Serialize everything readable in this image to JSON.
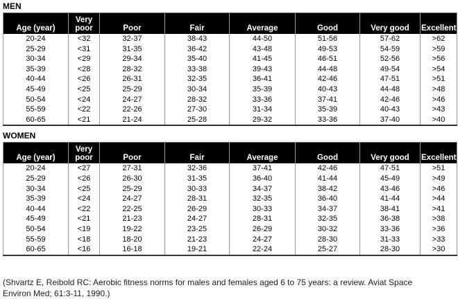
{
  "colors": {
    "header_bg": "#000000",
    "header_text": "#ffffff",
    "grid_line": "#9a9a9a"
  },
  "tables": [
    {
      "label": "MEN",
      "columns": [
        "Age (year)",
        "Very poor",
        "Poor",
        "Fair",
        "Average",
        "Good",
        "Very good",
        "Excellent"
      ],
      "rows": [
        [
          "20-24",
          "<32",
          "32-37",
          "38-43",
          "44-50",
          "51-56",
          "57-62",
          ">62"
        ],
        [
          "25-29",
          "<31",
          "31-35",
          "36-42",
          "43-48",
          "49-53",
          "54-59",
          ">59"
        ],
        [
          "30-34",
          "<29",
          "29-34",
          "35-40",
          "41-45",
          "46-51",
          "52-56",
          ">56"
        ],
        [
          "35-39",
          "<28",
          "28-32",
          "33-38",
          "39-43",
          "44-48",
          "49-54",
          ">54"
        ],
        [
          "40-44",
          "<26",
          "26-31",
          "32-35",
          "36-41",
          "42-46",
          "47-51",
          ">51"
        ],
        [
          "45-49",
          "<25",
          "25-29",
          "30-34",
          "35-39",
          "40-43",
          "44-48",
          ">48"
        ],
        [
          "50-54",
          "<24",
          "24-27",
          "28-32",
          "33-36",
          "37-41",
          "42-46",
          ">46"
        ],
        [
          "55-59",
          "<22",
          "22-26",
          "27-30",
          "31-34",
          "35-39",
          "40-43",
          ">43"
        ],
        [
          "60-65",
          "<21",
          "21-24",
          "25-28",
          "29-32",
          "33-36",
          "37-40",
          ">40"
        ]
      ]
    },
    {
      "label": "WOMEN",
      "columns": [
        "Age (year)",
        "Very poor",
        "Poor",
        "Fair",
        "Average",
        "Good",
        "Very good",
        "Excellent"
      ],
      "rows": [
        [
          "20-24",
          "<27",
          "27-31",
          "32-36",
          "37-41",
          "42-46",
          "47-51",
          ">51"
        ],
        [
          "25-29",
          "<26",
          "26-30",
          "31-35",
          "36-40",
          "41-44",
          "45-49",
          ">49"
        ],
        [
          "30-34",
          "<25",
          "25-29",
          "30-33",
          "34-37",
          "38-42",
          "43-46",
          ">46"
        ],
        [
          "35-39",
          "<24",
          "24-27",
          "28-31",
          "32-35",
          "36-40",
          "41-44",
          ">44"
        ],
        [
          "40-44",
          "<22",
          "22-25",
          "26-29",
          "30-33",
          "34-37",
          "38-41",
          ">41"
        ],
        [
          "45-49",
          "<21",
          "21-23",
          "24-27",
          "28-31",
          "32-35",
          "36-38",
          ">38"
        ],
        [
          "50-54",
          "<19",
          "19-22",
          "23-25",
          "26-29",
          "30-32",
          "33-36",
          ">36"
        ],
        [
          "55-59",
          "<18",
          "18-20",
          "21-23",
          "24-27",
          "28-30",
          "31-33",
          ">33"
        ],
        [
          "60-65",
          "<16",
          "16-18",
          "19-21",
          "22-24",
          "25-27",
          "28-30",
          ">30"
        ]
      ]
    }
  ],
  "citation": "(Shvartz E, Reibold RC: Aerobic fitness norms for males and females aged 6 to 75 years: a review. Aviat Space Environ Med; 61:3-11, 1990.)"
}
